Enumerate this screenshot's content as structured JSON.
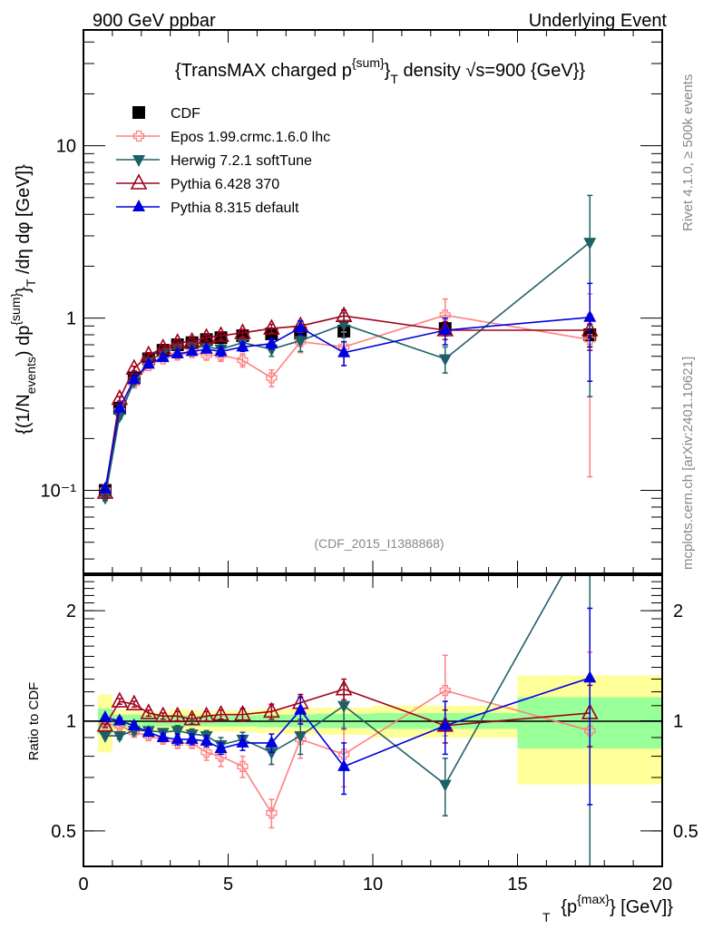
{
  "header": {
    "left_label": "900 GeV ppbar",
    "right_label": "Underlying Event"
  },
  "side_labels": {
    "rivet": "Rivet 4.1.0, ≥ 500k events",
    "mcplots": "mcplots.cern.ch [arXiv:2401.10621]"
  },
  "chart_data": [
    {
      "type": "line",
      "panel": "main",
      "title": "{TransMAX charged p^{sum}_T density √s=900 {GeV}}",
      "title_parts": {
        "pre": "{TransMAX charged p",
        "sup": "{sum}",
        "mid": "}",
        "sub": "T",
        "post": " density √s=900 {GeV}}"
      },
      "xlabel": "{p_T^{max}} [GeV]",
      "ylabel": "{(1/N_events) dp^{sum}_T /dη dφ [GeV]}",
      "xlim": [
        0,
        20
      ],
      "ylim": [
        0.033,
        47
      ],
      "yscale": "log",
      "yticks": [
        {
          "v": 0.1,
          "label": "10⁻¹"
        },
        {
          "v": 1,
          "label": "1"
        },
        {
          "v": 10,
          "label": "10"
        }
      ],
      "annotation": "(CDF_2015_I1388868)",
      "legend_position": "top-left",
      "series": [
        {
          "name": "CDF",
          "color": "#000000",
          "marker": "square",
          "x": [
            0.75,
            1.25,
            1.75,
            2.25,
            2.75,
            3.25,
            3.75,
            4.25,
            4.75,
            5.5,
            6.5,
            7.5,
            9.0,
            12.5,
            17.5
          ],
          "y": [
            0.1,
            0.3,
            0.45,
            0.58,
            0.65,
            0.7,
            0.72,
            0.75,
            0.77,
            0.79,
            0.81,
            0.82,
            0.84,
            0.87,
            0.8
          ],
          "err": [
            0.005,
            0.01,
            0.015,
            0.02,
            0.02,
            0.02,
            0.02,
            0.03,
            0.03,
            0.03,
            0.04,
            0.05,
            0.06,
            0.08,
            0.12
          ]
        },
        {
          "name": "Epos 1.99.crmc.1.6.0 lhc",
          "color": "#ff8080",
          "marker": "open-cross",
          "x": [
            0.75,
            1.25,
            1.75,
            2.25,
            2.75,
            3.25,
            3.75,
            4.25,
            4.75,
            5.5,
            6.5,
            7.5,
            9.0,
            12.5,
            17.5
          ],
          "y": [
            0.1,
            0.29,
            0.42,
            0.53,
            0.58,
            0.61,
            0.63,
            0.61,
            0.61,
            0.57,
            0.45,
            0.73,
            0.68,
            1.04,
            0.75
          ],
          "err": [
            0.004,
            0.01,
            0.015,
            0.02,
            0.02,
            0.03,
            0.03,
            0.04,
            0.05,
            0.05,
            0.05,
            0.1,
            0.15,
            0.25,
            0.63
          ]
        },
        {
          "name": "Herwig 7.2.1 softTune",
          "color": "#1f6068",
          "marker": "triangle-down",
          "x": [
            0.75,
            1.25,
            1.75,
            2.25,
            2.75,
            3.25,
            3.75,
            4.25,
            4.75,
            5.5,
            6.5,
            7.5,
            9.0,
            12.5,
            17.5
          ],
          "y": [
            0.091,
            0.27,
            0.43,
            0.56,
            0.63,
            0.67,
            0.68,
            0.68,
            0.66,
            0.72,
            0.66,
            0.74,
            0.92,
            0.58,
            2.75
          ],
          "err": [
            0.004,
            0.01,
            0.015,
            0.02,
            0.02,
            0.03,
            0.03,
            0.03,
            0.04,
            0.05,
            0.06,
            0.1,
            0.15,
            0.1,
            2.4
          ]
        },
        {
          "name": "Pythia 6.428 370",
          "color": "#a0001c",
          "marker": "open-triangle-up",
          "x": [
            0.75,
            1.25,
            1.75,
            2.25,
            2.75,
            3.25,
            3.75,
            4.25,
            4.75,
            5.5,
            6.5,
            7.5,
            9.0,
            12.5,
            17.5
          ],
          "y": [
            0.097,
            0.34,
            0.51,
            0.61,
            0.67,
            0.72,
            0.73,
            0.77,
            0.79,
            0.82,
            0.87,
            0.9,
            1.03,
            0.85,
            0.85
          ],
          "err": [
            0.004,
            0.01,
            0.015,
            0.02,
            0.02,
            0.03,
            0.03,
            0.03,
            0.04,
            0.04,
            0.05,
            0.06,
            0.08,
            0.1,
            0.2
          ]
        },
        {
          "name": "Pythia 8.315 default",
          "color": "#0000e0",
          "marker": "triangle-up",
          "x": [
            0.75,
            1.25,
            1.75,
            2.25,
            2.75,
            3.25,
            3.75,
            4.25,
            4.75,
            5.5,
            6.5,
            7.5,
            9.0,
            12.5,
            17.5
          ],
          "y": [
            0.102,
            0.3,
            0.44,
            0.54,
            0.59,
            0.62,
            0.64,
            0.66,
            0.64,
            0.68,
            0.71,
            0.88,
            0.63,
            0.85,
            1.01
          ],
          "err": [
            0.004,
            0.01,
            0.015,
            0.02,
            0.02,
            0.03,
            0.03,
            0.03,
            0.04,
            0.04,
            0.05,
            0.08,
            0.1,
            0.15,
            0.58
          ]
        }
      ]
    },
    {
      "type": "line",
      "panel": "ratio",
      "ylabel": "Ratio to CDF",
      "xlabel": "{p_T^{max}} [GeV]",
      "xlim": [
        0,
        20
      ],
      "ylim": [
        0.4,
        2.5
      ],
      "yscale": "log",
      "yticks": [
        {
          "v": 0.5,
          "label": "0.5"
        },
        {
          "v": 1,
          "label": "1"
        },
        {
          "v": 2,
          "label": "2"
        }
      ],
      "xticks": [
        0,
        5,
        10,
        15,
        20
      ],
      "reference_line": 1,
      "bands": {
        "bins": [
          [
            0.5,
            1.0
          ],
          [
            1.0,
            1.5
          ],
          [
            1.5,
            2.0
          ],
          [
            2.0,
            2.5
          ],
          [
            2.5,
            3.0
          ],
          [
            3.0,
            3.5
          ],
          [
            3.5,
            4.0
          ],
          [
            4.0,
            4.5
          ],
          [
            4.5,
            5.0
          ],
          [
            5.0,
            6.0
          ],
          [
            6.0,
            7.0
          ],
          [
            7.0,
            8.0
          ],
          [
            8.0,
            10.0
          ],
          [
            10.0,
            15.0
          ],
          [
            15.0,
            20.0
          ]
        ],
        "inner_half": [
          0.08,
          0.04,
          0.04,
          0.035,
          0.035,
          0.04,
          0.035,
          0.035,
          0.035,
          0.035,
          0.04,
          0.04,
          0.045,
          0.05,
          0.16
        ],
        "outer_half": [
          0.18,
          0.07,
          0.065,
          0.06,
          0.06,
          0.075,
          0.07,
          0.065,
          0.065,
          0.065,
          0.075,
          0.08,
          0.085,
          0.1,
          0.33
        ],
        "inner_color": "#99ff99",
        "outer_color": "#ffff99"
      },
      "series": [
        {
          "name": "Epos 1.99.crmc.1.6.0 lhc",
          "color": "#ff8080",
          "marker": "open-cross",
          "x": [
            0.75,
            1.25,
            1.75,
            2.25,
            2.75,
            3.25,
            3.75,
            4.25,
            4.75,
            5.5,
            6.5,
            7.5,
            9.0,
            12.5,
            17.5
          ],
          "y": [
            0.98,
            0.97,
            0.93,
            0.91,
            0.89,
            0.87,
            0.87,
            0.82,
            0.8,
            0.75,
            0.56,
            0.89,
            0.81,
            1.21,
            0.94
          ],
          "err": [
            0.01,
            0.02,
            0.02,
            0.02,
            0.02,
            0.03,
            0.03,
            0.04,
            0.05,
            0.05,
            0.05,
            0.1,
            0.15,
            0.3,
            0.6
          ]
        },
        {
          "name": "Herwig 7.2.1 softTune",
          "color": "#1f6068",
          "marker": "triangle-down",
          "x": [
            0.75,
            1.25,
            1.75,
            2.25,
            2.75,
            3.25,
            3.75,
            4.25,
            4.75,
            5.5,
            6.5,
            7.5,
            9.0,
            12.5,
            17.5
          ],
          "y": [
            0.91,
            0.91,
            0.94,
            0.94,
            0.93,
            0.94,
            0.92,
            0.91,
            0.86,
            0.89,
            0.82,
            0.91,
            1.1,
            0.67,
            3.4
          ],
          "err": [
            0.01,
            0.02,
            0.02,
            0.02,
            0.02,
            0.03,
            0.03,
            0.03,
            0.04,
            0.04,
            0.06,
            0.1,
            0.15,
            0.12,
            3.0
          ]
        },
        {
          "name": "Pythia 6.428 370",
          "color": "#a0001c",
          "marker": "open-triangle-up",
          "x": [
            0.75,
            1.25,
            1.75,
            2.25,
            2.75,
            3.25,
            3.75,
            4.25,
            4.75,
            5.5,
            6.5,
            7.5,
            9.0,
            12.5,
            17.5
          ],
          "y": [
            0.97,
            1.13,
            1.11,
            1.05,
            1.03,
            1.03,
            1.01,
            1.03,
            1.04,
            1.04,
            1.06,
            1.12,
            1.22,
            0.97,
            1.05
          ],
          "err": [
            0.01,
            0.02,
            0.02,
            0.02,
            0.02,
            0.03,
            0.03,
            0.03,
            0.03,
            0.04,
            0.05,
            0.06,
            0.08,
            0.1,
            0.2
          ]
        },
        {
          "name": "Pythia 8.315 default",
          "color": "#0000e0",
          "marker": "triangle-up",
          "x": [
            0.75,
            1.25,
            1.75,
            2.25,
            2.75,
            3.25,
            3.75,
            4.25,
            4.75,
            5.5,
            6.5,
            7.5,
            9.0,
            12.5,
            17.5
          ],
          "y": [
            1.02,
            1.0,
            0.97,
            0.93,
            0.9,
            0.89,
            0.89,
            0.88,
            0.84,
            0.87,
            0.87,
            1.07,
            0.75,
            0.97,
            1.31
          ],
          "err": [
            0.01,
            0.02,
            0.02,
            0.02,
            0.02,
            0.03,
            0.03,
            0.03,
            0.03,
            0.04,
            0.05,
            0.09,
            0.12,
            0.16,
            0.72
          ]
        }
      ]
    }
  ]
}
